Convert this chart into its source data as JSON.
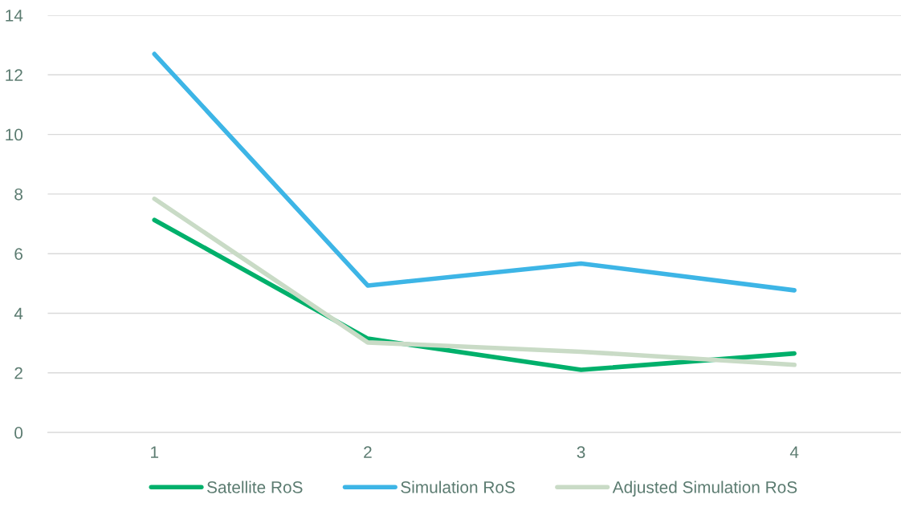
{
  "chart_data": {
    "type": "line",
    "categories": [
      "1",
      "2",
      "3",
      "4"
    ],
    "series": [
      {
        "name": "Satellite RoS",
        "color": "#00b06b",
        "values": [
          7.13,
          3.15,
          2.1,
          2.65
        ]
      },
      {
        "name": "Simulation RoS",
        "color": "#3db5e6",
        "values": [
          12.7,
          4.93,
          5.67,
          4.77
        ]
      },
      {
        "name": "Adjusted Simulation RoS",
        "color": "#c9dbc6",
        "values": [
          7.84,
          3.02,
          2.71,
          2.27
        ]
      }
    ],
    "ylim": [
      0,
      14
    ],
    "yticks": [
      0,
      2,
      4,
      6,
      8,
      10,
      12,
      14
    ],
    "grid": "y",
    "legend": "bottom",
    "marker": "none",
    "line_style": "solid"
  }
}
